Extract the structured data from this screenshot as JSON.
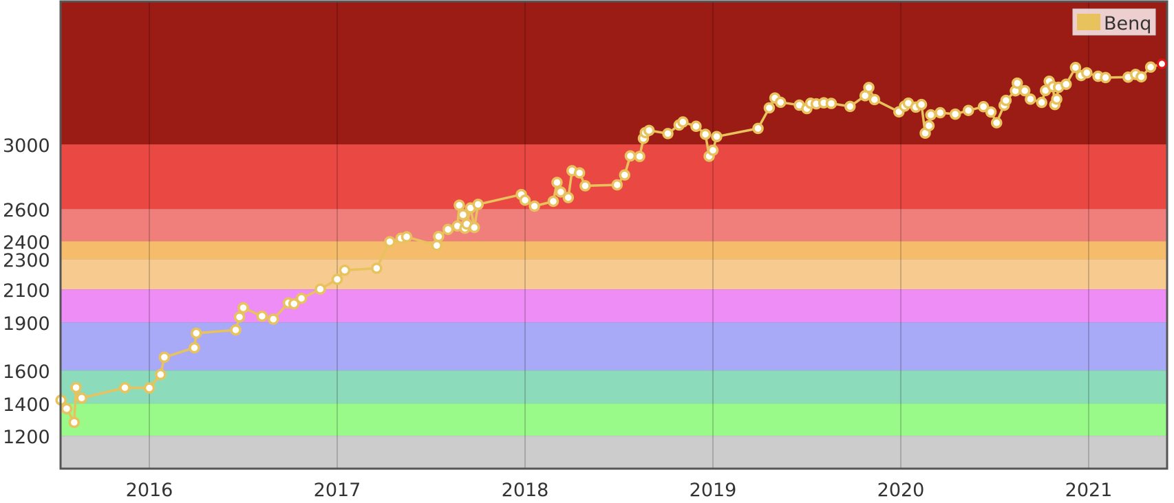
{
  "chart_data": {
    "type": "line",
    "title": "",
    "xlabel": "",
    "ylabel": "",
    "xlim": [
      2015.52,
      2021.39
    ],
    "ylim": [
      1000,
      4000
    ],
    "x_ticks": [
      {
        "label": "2016",
        "value": 2016
      },
      {
        "label": "2017",
        "value": 2017
      },
      {
        "label": "2018",
        "value": 2018
      },
      {
        "label": "2019",
        "value": 2019
      },
      {
        "label": "2020",
        "value": 2020
      },
      {
        "label": "2021",
        "value": 2021
      }
    ],
    "y_ticks": [
      {
        "label": "1200",
        "value": 1200
      },
      {
        "label": "1400",
        "value": 1400
      },
      {
        "label": "1600",
        "value": 1600
      },
      {
        "label": "1900",
        "value": 1900
      },
      {
        "label": "2100",
        "value": 2100
      },
      {
        "label": "2300",
        "value": 2300
      },
      {
        "label": "2400",
        "value": 2400
      },
      {
        "label": "2600",
        "value": 2600
      },
      {
        "label": "3000",
        "value": 3000
      }
    ],
    "bands": [
      {
        "from": 1000,
        "to": 1200,
        "color": "#cccccc"
      },
      {
        "from": 1200,
        "to": 1400,
        "color": "#99fa8a"
      },
      {
        "from": 1400,
        "to": 1600,
        "color": "#8cdcbc"
      },
      {
        "from": 1600,
        "to": 1900,
        "color": "#a9aaf7"
      },
      {
        "from": 1900,
        "to": 2100,
        "color": "#ee8df6"
      },
      {
        "from": 2100,
        "to": 2300,
        "color": "#f7cb90"
      },
      {
        "from": 2300,
        "to": 2400,
        "color": "#f5bd6b"
      },
      {
        "from": 2400,
        "to": 2600,
        "color": "#f07f7b"
      },
      {
        "from": 2600,
        "to": 3000,
        "color": "#ea4943"
      },
      {
        "from": 3000,
        "to": 4000,
        "color": "#9b1c15"
      }
    ],
    "legend": {
      "position": "top-right",
      "entries": [
        {
          "name": "Benq",
          "color": "#e8c25c"
        }
      ]
    },
    "series": [
      {
        "name": "Benq",
        "color": "#e8c25c",
        "points": [
          [
            2015.53,
            1420
          ],
          [
            2015.56,
            1367
          ],
          [
            2015.6,
            1282
          ],
          [
            2015.61,
            1496
          ],
          [
            2015.64,
            1432
          ],
          [
            2015.87,
            1495
          ],
          [
            2016.0,
            1493
          ],
          [
            2016.06,
            1575
          ],
          [
            2016.08,
            1682
          ],
          [
            2016.24,
            1741
          ],
          [
            2016.25,
            1832
          ],
          [
            2016.46,
            1852
          ],
          [
            2016.48,
            1932
          ],
          [
            2016.5,
            1988
          ],
          [
            2016.6,
            1937
          ],
          [
            2016.66,
            1919
          ],
          [
            2016.74,
            2017
          ],
          [
            2016.77,
            2012
          ],
          [
            2016.81,
            2045
          ],
          [
            2016.91,
            2101
          ],
          [
            2017.0,
            2166
          ],
          [
            2017.04,
            2226
          ],
          [
            2017.21,
            2239
          ],
          [
            2017.28,
            2397
          ],
          [
            2017.34,
            2418
          ],
          [
            2017.37,
            2427
          ],
          [
            2017.53,
            2376
          ],
          [
            2017.54,
            2429
          ],
          [
            2017.59,
            2473
          ],
          [
            2017.64,
            2494
          ],
          [
            2017.65,
            2623
          ],
          [
            2017.67,
            2564
          ],
          [
            2017.68,
            2480
          ],
          [
            2017.69,
            2506
          ],
          [
            2017.71,
            2606
          ],
          [
            2017.73,
            2485
          ],
          [
            2017.75,
            2628
          ],
          [
            2017.98,
            2689
          ],
          [
            2018.0,
            2654
          ],
          [
            2018.05,
            2617
          ],
          [
            2018.15,
            2647
          ],
          [
            2018.17,
            2764
          ],
          [
            2018.19,
            2705
          ],
          [
            2018.23,
            2670
          ],
          [
            2018.25,
            2836
          ],
          [
            2018.29,
            2823
          ],
          [
            2018.32,
            2743
          ],
          [
            2018.49,
            2749
          ],
          [
            2018.53,
            2810
          ],
          [
            2018.56,
            2928
          ],
          [
            2018.61,
            2925
          ],
          [
            2018.63,
            3041
          ],
          [
            2018.64,
            3082
          ],
          [
            2018.66,
            3097
          ],
          [
            2018.76,
            3075
          ],
          [
            2018.82,
            3135
          ],
          [
            2018.84,
            3156
          ],
          [
            2018.91,
            3126
          ],
          [
            2018.96,
            3070
          ],
          [
            2018.98,
            2926
          ],
          [
            2019.0,
            2963
          ],
          [
            2019.02,
            3054
          ],
          [
            2019.24,
            3111
          ],
          [
            2019.3,
            3255
          ],
          [
            2019.33,
            3324
          ],
          [
            2019.36,
            3294
          ],
          [
            2019.46,
            3274
          ],
          [
            2019.5,
            3250
          ],
          [
            2019.52,
            3287
          ],
          [
            2019.55,
            3283
          ],
          [
            2019.59,
            3290
          ],
          [
            2019.63,
            3286
          ],
          [
            2019.73,
            3265
          ],
          [
            2019.81,
            3340
          ],
          [
            2019.83,
            3397
          ],
          [
            2019.86,
            3313
          ],
          [
            2019.99,
            3227
          ],
          [
            2020.02,
            3267
          ],
          [
            2020.04,
            3288
          ],
          [
            2020.08,
            3260
          ],
          [
            2020.11,
            3278
          ],
          [
            2020.13,
            3078
          ],
          [
            2020.15,
            3130
          ],
          [
            2020.16,
            3206
          ],
          [
            2020.21,
            3221
          ],
          [
            2020.29,
            3211
          ],
          [
            2020.36,
            3237
          ],
          [
            2020.44,
            3263
          ],
          [
            2020.48,
            3226
          ],
          [
            2020.51,
            3151
          ],
          [
            2020.55,
            3273
          ],
          [
            2020.56,
            3307
          ],
          [
            2020.61,
            3374
          ],
          [
            2020.62,
            3428
          ],
          [
            2020.66,
            3375
          ],
          [
            2020.69,
            3316
          ],
          [
            2020.75,
            3293
          ],
          [
            2020.77,
            3376
          ],
          [
            2020.79,
            3441
          ],
          [
            2020.81,
            3403
          ],
          [
            2020.82,
            3278
          ],
          [
            2020.83,
            3316
          ],
          [
            2020.84,
            3399
          ],
          [
            2020.88,
            3420
          ],
          [
            2020.93,
            3537
          ],
          [
            2020.96,
            3481
          ],
          [
            2020.99,
            3500
          ],
          [
            2021.05,
            3476
          ],
          [
            2021.09,
            3467
          ],
          [
            2021.21,
            3470
          ],
          [
            2021.25,
            3489
          ],
          [
            2021.28,
            3472
          ],
          [
            2021.33,
            3540
          ],
          [
            2021.39,
            3563
          ]
        ]
      }
    ]
  }
}
